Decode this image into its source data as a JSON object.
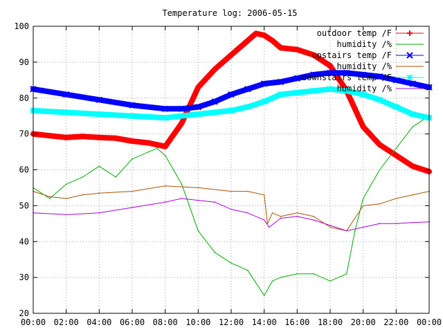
{
  "chart_data": {
    "type": "line",
    "title": "Temperature log: 2006-05-15",
    "xlabel": "",
    "ylabel": "",
    "xlim": [
      0,
      24
    ],
    "ylim": [
      20,
      100
    ],
    "x_ticks": [
      "00:00",
      "02:00",
      "04:00",
      "06:00",
      "08:00",
      "10:00",
      "12:00",
      "14:00",
      "16:00",
      "18:00",
      "20:00",
      "22:00",
      "00:00"
    ],
    "y_ticks": [
      "20",
      "30",
      "40",
      "50",
      "60",
      "70",
      "80",
      "90",
      "100"
    ],
    "grid": true,
    "legend_position": "top-right",
    "series": [
      {
        "name": "outdoor temp /F",
        "color": "#ff0000",
        "marker": "plus",
        "x": [
          0,
          1,
          2,
          3,
          4,
          5,
          6,
          7,
          7.5,
          8,
          9,
          10,
          11,
          12,
          13,
          13.5,
          14,
          14.5,
          15,
          16,
          17,
          18,
          19,
          20,
          21,
          22,
          23,
          24
        ],
        "y": [
          70,
          69.5,
          69,
          69.3,
          69,
          68.8,
          68,
          67.5,
          67,
          66.5,
          73,
          83,
          88,
          92,
          96,
          98,
          97.5,
          96,
          94,
          93.5,
          92,
          89,
          82,
          72,
          67,
          64,
          61,
          59.5
        ]
      },
      {
        "name": "humidity /%",
        "color": "#00aa00",
        "marker": "none",
        "x": [
          0,
          1,
          2,
          3,
          4,
          5,
          6,
          7,
          7.5,
          8,
          9,
          10,
          11,
          12,
          13,
          14,
          14.5,
          15,
          16,
          17,
          18,
          19,
          19.5,
          20,
          21,
          22,
          23,
          24
        ],
        "y": [
          55,
          52,
          56,
          58,
          61,
          58,
          63,
          65,
          66,
          64,
          56,
          43,
          37,
          34,
          32,
          25,
          29,
          30,
          31,
          31,
          29,
          31,
          43,
          52,
          60,
          66,
          72,
          75
        ]
      },
      {
        "name": "upstairs temp /F",
        "color": "#0000ff",
        "marker": "x",
        "x": [
          0,
          2,
          4,
          6,
          8,
          9,
          10,
          11,
          12,
          13,
          14,
          15,
          16,
          17,
          18,
          19,
          20,
          21,
          22,
          23,
          24
        ],
        "y": [
          82.5,
          81,
          79.5,
          78,
          77,
          77,
          77.5,
          79,
          81,
          82.5,
          84,
          84.5,
          85.5,
          86.5,
          87,
          87,
          86.5,
          86,
          85,
          84,
          83
        ]
      },
      {
        "name": "humidity /%",
        "color": "#aa5500",
        "marker": "none",
        "x": [
          0,
          1,
          2,
          3,
          4,
          6,
          8,
          10,
          12,
          13,
          14,
          14.2,
          14.5,
          15,
          16,
          17,
          18,
          19,
          20,
          21,
          22,
          23,
          24
        ],
        "y": [
          54,
          52.5,
          52,
          53,
          53.5,
          54,
          55.5,
          55,
          54,
          54,
          53,
          45,
          48,
          47,
          48,
          47,
          44,
          43,
          50,
          50.5,
          52,
          53,
          54
        ]
      },
      {
        "name": "downstairs temp /F",
        "color": "#00ffff",
        "marker": "star",
        "x": [
          0,
          2,
          4,
          6,
          8,
          10,
          12,
          13,
          14,
          15,
          16,
          17,
          18,
          19,
          20,
          21,
          22,
          23,
          24
        ],
        "y": [
          76.5,
          76,
          75.5,
          75,
          74.5,
          75.5,
          76.5,
          77.5,
          79,
          81,
          81.5,
          82,
          82.5,
          82,
          81,
          79.5,
          77.5,
          75.5,
          74.5
        ]
      },
      {
        "name": "humidity /%",
        "color": "#aa00dd",
        "marker": "none",
        "x": [
          0,
          2,
          4,
          6,
          8,
          9,
          10,
          11,
          12,
          13,
          14,
          14.3,
          15,
          16,
          17,
          18,
          19,
          20,
          21,
          22,
          23,
          24
        ],
        "y": [
          48,
          47.5,
          48,
          49.5,
          51,
          52,
          51.5,
          51,
          49,
          48,
          46,
          44,
          46.5,
          47,
          46,
          44.5,
          43,
          44,
          45,
          45,
          45.3,
          45.5
        ]
      }
    ]
  }
}
